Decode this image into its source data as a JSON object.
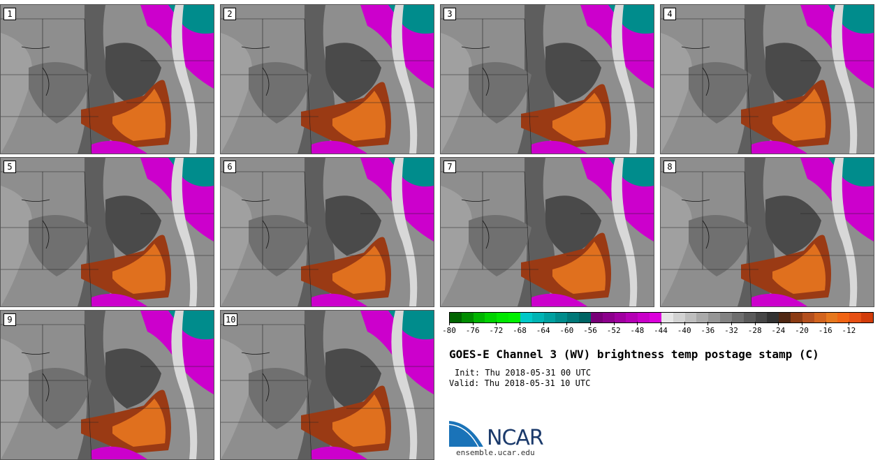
{
  "panels": [
    {
      "label": "1"
    },
    {
      "label": "2"
    },
    {
      "label": "3"
    },
    {
      "label": "4"
    },
    {
      "label": "5"
    },
    {
      "label": "6"
    },
    {
      "label": "7"
    },
    {
      "label": "8"
    },
    {
      "label": "9"
    },
    {
      "label": "10"
    }
  ],
  "colorbar": {
    "colors": [
      "#006400",
      "#008c00",
      "#00b400",
      "#00d200",
      "#00e600",
      "#00f000",
      "#00c8c8",
      "#00b4b4",
      "#00a0a0",
      "#008c8c",
      "#007878",
      "#006464",
      "#780078",
      "#8c008c",
      "#a000a0",
      "#b400b4",
      "#c800c8",
      "#dc00dc",
      "#e6e6e6",
      "#d2d2d2",
      "#bebebe",
      "#aaaaaa",
      "#969696",
      "#828282",
      "#6e6e6e",
      "#5a5a5a",
      "#464646",
      "#323232",
      "#502814",
      "#8c3c14",
      "#b4501e",
      "#d2641e",
      "#e6781e",
      "#f06414",
      "#e65014",
      "#d23c0a"
    ],
    "tick_labels": [
      "-80",
      "-76",
      "-72",
      "-68",
      "-64",
      "-60",
      "-56",
      "-52",
      "-48",
      "-44",
      "-40",
      "-36",
      "-32",
      "-28",
      "-24",
      "-20",
      "-16",
      "-12"
    ]
  },
  "title": "GOES-E Channel 3 (WV) brightness temp postage stamp (C)",
  "init": "Init: Thu 2018-05-31 00 UTC",
  "valid": "Valid: Thu 2018-05-31 10 UTC",
  "logo_text": "NCAR",
  "url": "ensemble.ucar.edu"
}
